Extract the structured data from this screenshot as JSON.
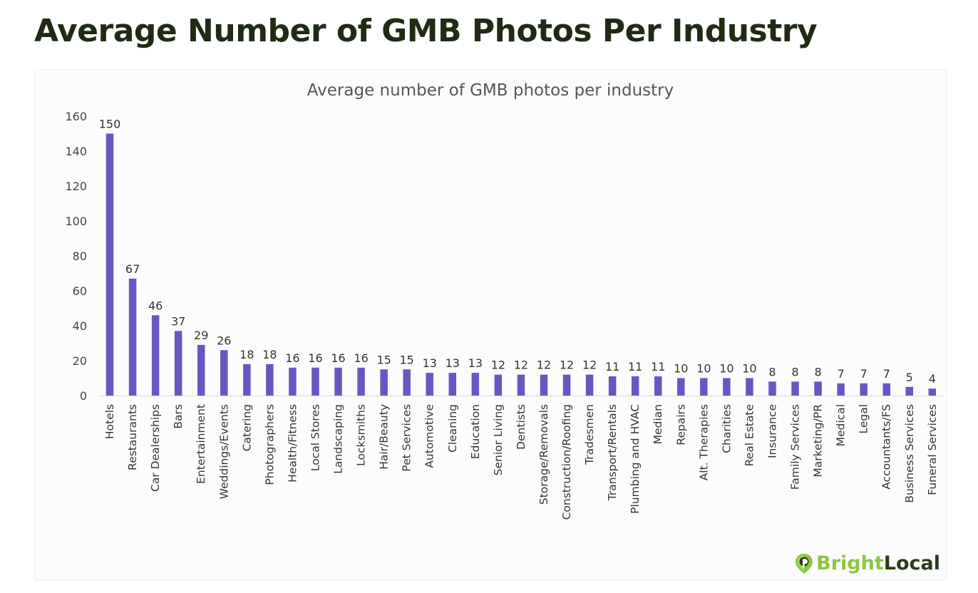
{
  "page": {
    "title": "Average Number of GMB Photos Per Industry"
  },
  "brand": {
    "name_part1": "Bright",
    "name_part2": "Local",
    "icon": "map-pin-icon",
    "colors": {
      "green": "#8cc63f",
      "dark": "#2b3a1c"
    }
  },
  "colors": {
    "title": "#1f2b14",
    "bar": "#6a55c3"
  },
  "chart_data": {
    "type": "bar",
    "title": "Average number of GMB photos per industry",
    "xlabel": "",
    "ylabel": "",
    "ylim": [
      0,
      160
    ],
    "yticks": [
      0,
      20,
      40,
      60,
      80,
      100,
      120,
      140,
      160
    ],
    "grid": false,
    "legend": "none",
    "categories": [
      "Hotels",
      "Restaurants",
      "Car Dealerships",
      "Bars",
      "Entertainment",
      "Weddings/Events",
      "Catering",
      "Photographers",
      "Health/Fitness",
      "Local Stores",
      "Landscaping",
      "Locksmiths",
      "Hair/Beauty",
      "Pet Services",
      "Automotive",
      "Cleaning",
      "Education",
      "Senior Living",
      "Dentists",
      "Storage/Removals",
      "Construction/Roofing",
      "Tradesmen",
      "Transport/Rentals",
      "Plumbing and HVAC",
      "Median",
      "Repairs",
      "Alt. Therapies",
      "Charities",
      "Real Estate",
      "Insurance",
      "Family Services",
      "Marketing/PR",
      "Medical",
      "Legal",
      "Accountants/FS",
      "Business Services",
      "Funeral Services"
    ],
    "values": [
      150,
      67,
      46,
      37,
      29,
      26,
      18,
      18,
      16,
      16,
      16,
      16,
      15,
      15,
      13,
      13,
      13,
      12,
      12,
      12,
      12,
      12,
      11,
      11,
      11,
      10,
      10,
      10,
      10,
      8,
      8,
      8,
      7,
      7,
      7,
      5,
      4
    ]
  }
}
